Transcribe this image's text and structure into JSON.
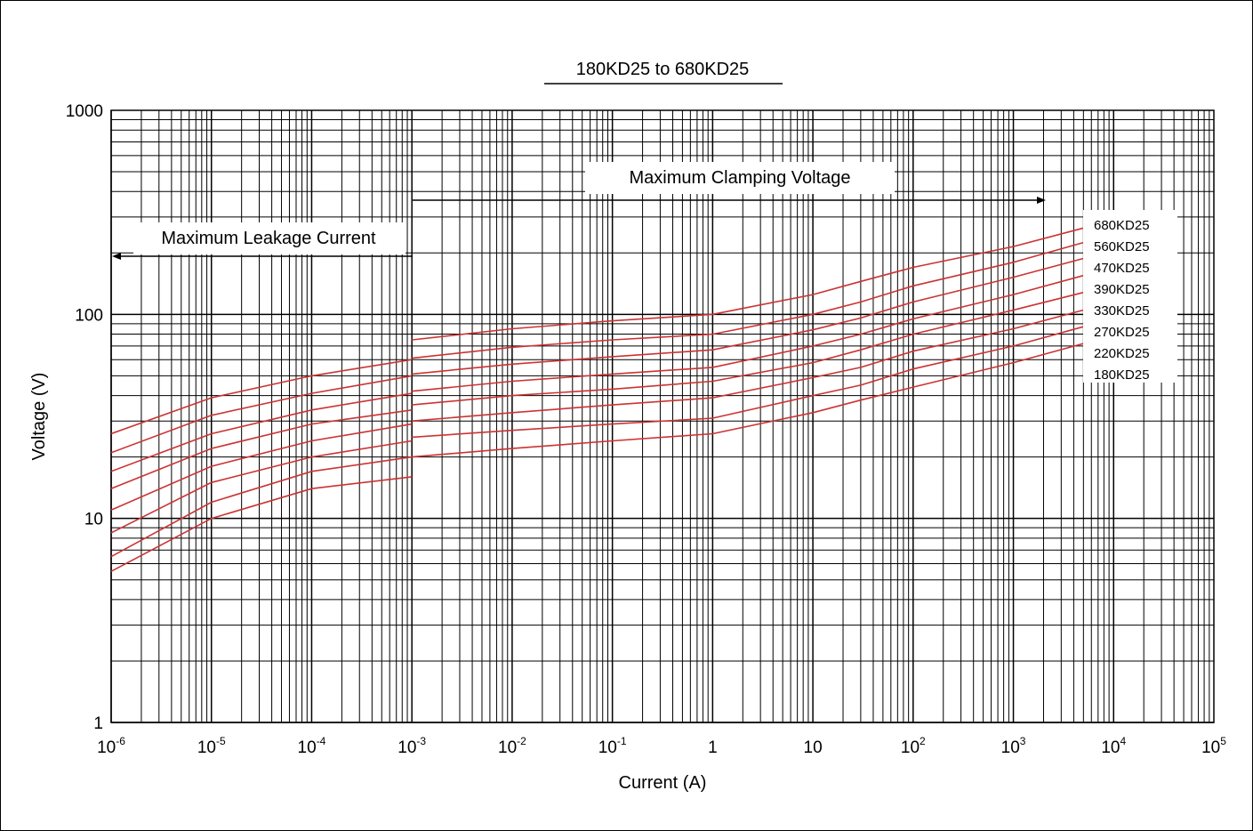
{
  "chart_data": {
    "type": "line",
    "title": "180KD25 to 680KD25",
    "xlabel": "Current (A)",
    "ylabel": "Voltage (V)",
    "x_scale": "log",
    "y_scale": "log",
    "xlim": [
      1e-06,
      100000
    ],
    "ylim": [
      1,
      1000
    ],
    "grid": true,
    "x_ticks": [
      {
        "base": "10",
        "exp": "-6"
      },
      {
        "base": "10",
        "exp": "-5"
      },
      {
        "base": "10",
        "exp": "-4"
      },
      {
        "base": "10",
        "exp": "-3"
      },
      {
        "base": "10",
        "exp": "-2"
      },
      {
        "base": "10",
        "exp": "-1"
      },
      {
        "base": "1",
        "exp": ""
      },
      {
        "base": "10",
        "exp": ""
      },
      {
        "base": "10",
        "exp": "2"
      },
      {
        "base": "10",
        "exp": "3"
      },
      {
        "base": "10",
        "exp": "4"
      },
      {
        "base": "10",
        "exp": "5"
      }
    ],
    "y_ticks": [
      "1",
      "10",
      "100",
      "1000"
    ],
    "annotations": {
      "clamping": "Maximum Clamping Voltage",
      "leakage": "Maximum Leakage Current"
    },
    "series_color": "#cc3333",
    "series": [
      {
        "name": "680KD25",
        "x": [
          1e-06,
          1e-05,
          0.0001,
          0.001
        ],
        "y": [
          26,
          39,
          50,
          60
        ],
        "x2": [
          0.001,
          0.01,
          0.1,
          1,
          10,
          30,
          100,
          1000,
          5000
        ],
        "y2": [
          75,
          85,
          93,
          100,
          125,
          145,
          170,
          215,
          265
        ]
      },
      {
        "name": "560KD25",
        "x": [
          1e-06,
          1e-05,
          0.0001,
          0.001
        ],
        "y": [
          21,
          32,
          41,
          50
        ],
        "x2": [
          0.001,
          0.01,
          0.1,
          1,
          10,
          30,
          100,
          1000,
          5000
        ],
        "y2": [
          61,
          69,
          75,
          80,
          100,
          115,
          138,
          180,
          225
        ]
      },
      {
        "name": "470KD25",
        "x": [
          1e-06,
          1e-05,
          0.0001,
          0.001
        ],
        "y": [
          17,
          26,
          34,
          41
        ],
        "x2": [
          0.001,
          0.01,
          0.1,
          1,
          10,
          30,
          100,
          1000,
          5000
        ],
        "y2": [
          51,
          57,
          62,
          67,
          84,
          96,
          115,
          152,
          188
        ]
      },
      {
        "name": "390KD25",
        "x": [
          1e-06,
          1e-05,
          0.0001,
          0.001
        ],
        "y": [
          14,
          22,
          29,
          34
        ],
        "x2": [
          0.001,
          0.01,
          0.1,
          1,
          10,
          30,
          100,
          1000,
          5000
        ],
        "y2": [
          42,
          47,
          51,
          55,
          70,
          80,
          95,
          125,
          155
        ]
      },
      {
        "name": "330KD25",
        "x": [
          1e-06,
          1e-05,
          0.0001,
          0.001
        ],
        "y": [
          11,
          18,
          24,
          29
        ],
        "x2": [
          0.001,
          0.01,
          0.1,
          1,
          10,
          30,
          100,
          1000,
          5000
        ],
        "y2": [
          36,
          40,
          43,
          47,
          58,
          67,
          80,
          105,
          128
        ]
      },
      {
        "name": "270KD25",
        "x": [
          1e-06,
          1e-05,
          0.0001,
          0.001
        ],
        "y": [
          8.5,
          15,
          20,
          24
        ],
        "x2": [
          0.001,
          0.01,
          0.1,
          1,
          10,
          30,
          100,
          1000,
          5000
        ],
        "y2": [
          30,
          33,
          36,
          39,
          49,
          55,
          66,
          85,
          105
        ]
      },
      {
        "name": "220KD25",
        "x": [
          1e-06,
          1e-05,
          0.0001,
          0.001
        ],
        "y": [
          6.5,
          12,
          17,
          20
        ],
        "x2": [
          0.001,
          0.01,
          0.1,
          1,
          10,
          30,
          100,
          1000,
          5000
        ],
        "y2": [
          25,
          27,
          29,
          31,
          40,
          45,
          54,
          70,
          87
        ]
      },
      {
        "name": "180KD25",
        "x": [
          1e-06,
          1e-05,
          0.0001,
          0.001
        ],
        "y": [
          5.5,
          10,
          14,
          16
        ],
        "x2": [
          0.001,
          0.01,
          0.1,
          1,
          10,
          30,
          100,
          1000,
          5000
        ],
        "y2": [
          20,
          22,
          24,
          26,
          33,
          38,
          44,
          58,
          72
        ]
      }
    ]
  }
}
